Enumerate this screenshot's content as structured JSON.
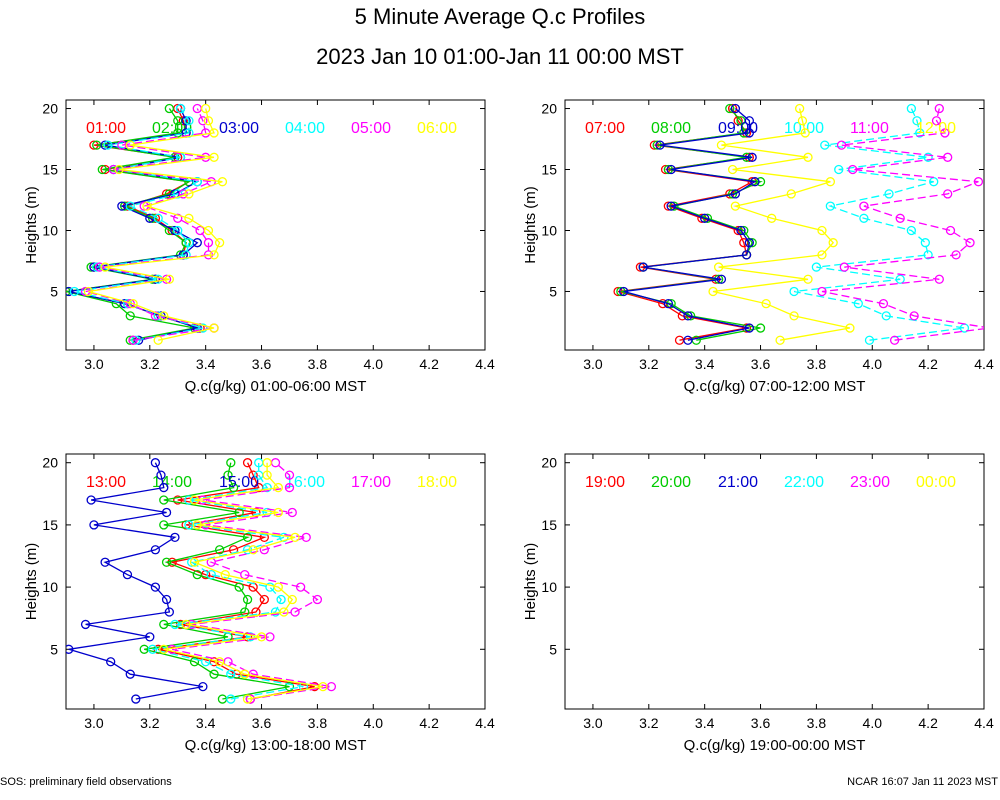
{
  "title": "5 Minute Average Q.c Profiles",
  "subtitle": "2023 Jan 10 01:00-Jan 11 00:00 MST",
  "footer": {
    "left": "SOS: preliminary field observations",
    "right": "NCAR 16:07 Jan 11 2023 MST"
  },
  "chart_data": [
    {
      "type": "line",
      "panel": "top-left",
      "xlabel": "Q.c(g/kg) 01:00-06:00 MST",
      "ylabel": "Heights (m)",
      "xlim": [
        2.9,
        4.4
      ],
      "ylim": [
        0.2,
        20.7
      ],
      "xticks": [
        "3.0",
        "3.2",
        "3.4",
        "3.6",
        "3.8",
        "4.0",
        "4.2",
        "4.4"
      ],
      "yticks": [
        "5",
        "10",
        "15",
        "20"
      ],
      "heights": [
        1,
        2,
        3,
        4,
        5,
        6,
        7,
        8,
        9,
        10,
        11,
        12,
        13,
        14,
        15,
        16,
        17,
        18,
        19,
        20
      ],
      "series": [
        {
          "name": "01:00",
          "color": "#ff0000",
          "values": [
            3.14,
            3.38,
            3.23,
            3.12,
            2.9,
            3.22,
            3.0,
            3.32,
            3.33,
            3.28,
            3.22,
            3.12,
            3.26,
            3.34,
            3.04,
            3.3,
            3.0,
            3.33,
            3.32,
            3.3
          ]
        },
        {
          "name": "02:00",
          "color": "#00cc00",
          "values": [
            3.13,
            3.36,
            3.13,
            3.08,
            2.9,
            3.21,
            2.99,
            3.31,
            3.33,
            3.27,
            3.21,
            3.11,
            3.27,
            3.34,
            3.03,
            3.29,
            3.01,
            3.3,
            3.3,
            3.27
          ]
        },
        {
          "name": "03:00",
          "color": "#0000cc",
          "values": [
            3.16,
            3.37,
            3.24,
            3.11,
            2.91,
            3.22,
            3.0,
            3.32,
            3.37,
            3.29,
            3.2,
            3.1,
            3.29,
            3.37,
            3.07,
            3.31,
            3.04,
            3.33,
            3.33,
            3.31
          ]
        },
        {
          "name": "04:00",
          "color": "#00ffff",
          "values": [
            3.15,
            3.39,
            3.23,
            3.12,
            2.93,
            3.23,
            3.01,
            3.33,
            3.34,
            3.3,
            3.23,
            3.13,
            3.3,
            3.37,
            3.07,
            3.31,
            3.05,
            3.34,
            3.34,
            3.31
          ]
        },
        {
          "name": "05:00",
          "color": "#ff00ff",
          "values": [
            3.14,
            3.43,
            3.22,
            3.13,
            2.97,
            3.26,
            3.02,
            3.41,
            3.41,
            3.38,
            3.3,
            3.18,
            3.32,
            3.42,
            3.07,
            3.4,
            3.1,
            3.4,
            3.39,
            3.37
          ]
        },
        {
          "name": "06:00",
          "color": "#ffff00",
          "values": [
            3.23,
            3.43,
            3.25,
            3.14,
            2.98,
            3.27,
            3.04,
            3.43,
            3.45,
            3.41,
            3.34,
            3.19,
            3.34,
            3.46,
            3.09,
            3.43,
            3.13,
            3.43,
            3.41,
            3.4
          ]
        }
      ]
    },
    {
      "type": "line",
      "panel": "top-right",
      "xlabel": "Q.c(g/kg) 07:00-12:00 MST",
      "ylabel": "Heights (m)",
      "xlim": [
        2.9,
        4.4
      ],
      "ylim": [
        0.2,
        20.7
      ],
      "xticks": [
        "3.0",
        "3.2",
        "3.4",
        "3.6",
        "3.8",
        "4.0",
        "4.2",
        "4.4"
      ],
      "yticks": [
        "5",
        "10",
        "15",
        "20"
      ],
      "heights": [
        1,
        2,
        3,
        4,
        5,
        6,
        7,
        8,
        9,
        10,
        11,
        12,
        13,
        14,
        15,
        16,
        17,
        18,
        19,
        20
      ],
      "series": [
        {
          "name": "07:00",
          "color": "#ff0000",
          "values": [
            3.31,
            3.55,
            3.32,
            3.25,
            3.09,
            3.44,
            3.17,
            3.55,
            3.54,
            3.52,
            3.39,
            3.27,
            3.49,
            3.57,
            3.26,
            3.56,
            3.22,
            3.55,
            3.52,
            3.5
          ]
        },
        {
          "name": "08:00",
          "color": "#00cc00",
          "values": [
            3.37,
            3.6,
            3.35,
            3.28,
            3.1,
            3.45,
            3.18,
            3.55,
            3.57,
            3.54,
            3.41,
            3.29,
            3.5,
            3.6,
            3.27,
            3.55,
            3.23,
            3.54,
            3.53,
            3.49
          ]
        },
        {
          "name": "09:00",
          "color": "#0000cc",
          "values": [
            3.34,
            3.56,
            3.34,
            3.27,
            3.11,
            3.46,
            3.18,
            3.55,
            3.56,
            3.53,
            3.4,
            3.28,
            3.51,
            3.58,
            3.28,
            3.57,
            3.24,
            3.56,
            3.56,
            3.51
          ]
        },
        {
          "name": "10:00",
          "color": "#00ffff",
          "values": [
            3.99,
            4.33,
            4.05,
            3.95,
            3.72,
            4.1,
            3.8,
            4.2,
            4.19,
            4.14,
            3.97,
            3.85,
            4.06,
            4.22,
            3.88,
            4.2,
            3.83,
            4.17,
            4.16,
            4.14
          ]
        },
        {
          "name": "11:00",
          "color": "#ff00ff",
          "values": [
            4.08,
            4.42,
            4.15,
            4.04,
            3.82,
            4.24,
            3.9,
            4.3,
            4.35,
            4.28,
            4.1,
            3.97,
            4.27,
            4.38,
            3.93,
            4.27,
            3.89,
            4.26,
            4.23,
            4.24
          ]
        },
        {
          "name": "12:00",
          "color": "#ffff00",
          "values": [
            3.67,
            3.92,
            3.72,
            3.62,
            3.43,
            3.77,
            3.45,
            3.82,
            3.86,
            3.82,
            3.64,
            3.51,
            3.71,
            3.85,
            3.5,
            3.77,
            3.46,
            3.76,
            3.75,
            3.74
          ]
        }
      ]
    },
    {
      "type": "line",
      "panel": "bottom-left",
      "xlabel": "Q.c(g/kg) 13:00-18:00 MST",
      "ylabel": "Heights (m)",
      "xlim": [
        2.9,
        4.4
      ],
      "ylim": [
        0.2,
        20.7
      ],
      "xticks": [
        "3.0",
        "3.2",
        "3.4",
        "3.6",
        "3.8",
        "4.0",
        "4.2",
        "4.4"
      ],
      "yticks": [
        "5",
        "10",
        "15",
        "20"
      ],
      "heights": [
        1,
        2,
        3,
        4,
        5,
        6,
        7,
        8,
        9,
        10,
        11,
        12,
        13,
        14,
        15,
        16,
        17,
        18,
        19,
        20
      ],
      "series": [
        {
          "name": "13:00",
          "color": "#ff0000",
          "values": [
            3.56,
            3.79,
            3.51,
            3.43,
            3.23,
            3.55,
            3.31,
            3.58,
            3.61,
            3.57,
            3.4,
            3.28,
            3.5,
            3.61,
            3.33,
            3.58,
            3.3,
            3.59,
            3.57,
            3.55
          ]
        },
        {
          "name": "14:00",
          "color": "#00cc00",
          "values": [
            3.46,
            3.7,
            3.43,
            3.36,
            3.18,
            3.48,
            3.25,
            3.54,
            3.55,
            3.52,
            3.37,
            3.26,
            3.45,
            3.55,
            3.25,
            3.52,
            3.25,
            3.5,
            3.48,
            3.49
          ]
        },
        {
          "name": "15:00",
          "color": "#0000cc",
          "values": [
            3.15,
            3.39,
            3.13,
            3.06,
            2.91,
            3.2,
            2.97,
            3.27,
            3.26,
            3.22,
            3.12,
            3.04,
            3.22,
            3.29,
            3.0,
            3.26,
            2.99,
            3.25,
            3.24,
            3.22
          ]
        },
        {
          "name": "16:00",
          "color": "#00ffff",
          "values": [
            3.49,
            3.75,
            3.49,
            3.4,
            3.21,
            3.56,
            3.29,
            3.65,
            3.67,
            3.63,
            3.42,
            3.35,
            3.55,
            3.68,
            3.34,
            3.62,
            3.34,
            3.62,
            3.59,
            3.59
          ]
        },
        {
          "name": "17:00",
          "color": "#ff00ff",
          "values": [
            3.56,
            3.85,
            3.57,
            3.48,
            3.28,
            3.63,
            3.35,
            3.72,
            3.8,
            3.74,
            3.54,
            3.42,
            3.61,
            3.76,
            3.4,
            3.71,
            3.39,
            3.7,
            3.7,
            3.65
          ]
        },
        {
          "name": "18:00",
          "color": "#ffff00",
          "values": [
            3.55,
            3.82,
            3.54,
            3.45,
            3.25,
            3.6,
            3.33,
            3.68,
            3.71,
            3.66,
            3.47,
            3.36,
            3.57,
            3.72,
            3.37,
            3.66,
            3.36,
            3.66,
            3.62,
            3.62
          ]
        }
      ]
    },
    {
      "type": "line",
      "panel": "bottom-right",
      "xlabel": "Q.c(g/kg) 19:00-00:00 MST",
      "ylabel": "Heights (m)",
      "xlim": [
        2.9,
        4.4
      ],
      "ylim": [
        0.2,
        20.7
      ],
      "xticks": [
        "3.0",
        "3.2",
        "3.4",
        "3.6",
        "3.8",
        "4.0",
        "4.2",
        "4.4"
      ],
      "yticks": [
        "5",
        "10",
        "15",
        "20"
      ],
      "heights": [],
      "series": [
        {
          "name": "19:00",
          "color": "#ff0000",
          "values": []
        },
        {
          "name": "20:00",
          "color": "#00cc00",
          "values": []
        },
        {
          "name": "21:00",
          "color": "#0000cc",
          "values": []
        },
        {
          "name": "22:00",
          "color": "#00ffff",
          "values": []
        },
        {
          "name": "23:00",
          "color": "#ff00ff",
          "values": []
        },
        {
          "name": "00:00",
          "color": "#ffff00",
          "values": []
        }
      ]
    }
  ]
}
